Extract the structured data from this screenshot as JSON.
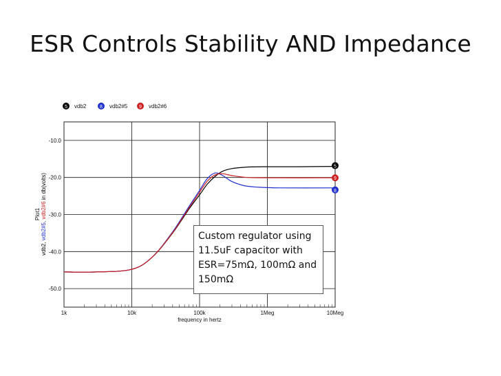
{
  "slide": {
    "title": "ESR Controls Stability AND Impedance"
  },
  "annotation": {
    "lines": [
      "Custom regulator using",
      "11.5uF capacitor with",
      "ESR=75mΩ, 100mΩ and",
      "150mΩ"
    ]
  },
  "chart_data": {
    "type": "line",
    "title": "",
    "plot_label": "Plot1",
    "xlabel": "frequency in hertz",
    "ylabel_parts": [
      {
        "text": "vdb2, ",
        "color": "#000000"
      },
      {
        "text": "vdb2#5",
        "color": "#1f2fd0"
      },
      {
        "text": ", ",
        "color": "#000000"
      },
      {
        "text": "vdb2#6",
        "color": "#d01f1f"
      },
      {
        "text": " in db(volts)",
        "color": "#000000"
      }
    ],
    "x_scale": "log",
    "xlim": [
      1000,
      10000000
    ],
    "ylim": [
      -55,
      -5
    ],
    "x_ticks": [
      {
        "value": 1000,
        "label": "1k"
      },
      {
        "value": 10000,
        "label": "10k"
      },
      {
        "value": 100000,
        "label": "100k"
      },
      {
        "value": 1000000,
        "label": "1Meg"
      },
      {
        "value": 10000000,
        "label": "10Meg"
      }
    ],
    "y_ticks": [
      {
        "value": -10,
        "label": "-10.0"
      },
      {
        "value": -20,
        "label": "-20.0"
      },
      {
        "value": -30,
        "label": "-30.0"
      },
      {
        "value": -40,
        "label": "-40.0"
      },
      {
        "value": -50,
        "label": "-50.0"
      }
    ],
    "grid": true,
    "legend": "top-left",
    "series": [
      {
        "name": "vdb2",
        "marker": "5",
        "color": "#000000",
        "points": [
          [
            1000,
            -45.5
          ],
          [
            3000,
            -45.5
          ],
          [
            10000,
            -44.8
          ],
          [
            20000,
            -41.5
          ],
          [
            40000,
            -35
          ],
          [
            70000,
            -28.5
          ],
          [
            100000,
            -24.7
          ],
          [
            130000,
            -21.8
          ],
          [
            170000,
            -19.7
          ],
          [
            220000,
            -18.3
          ],
          [
            300000,
            -17.6
          ],
          [
            500000,
            -17.2
          ],
          [
            1000000,
            -17.1
          ],
          [
            3000000,
            -17.1
          ],
          [
            10000000,
            -17.0
          ]
        ]
      },
      {
        "name": "vdb2#5",
        "marker": "8",
        "color": "#1f2fd0",
        "points": [
          [
            1000,
            -45.5
          ],
          [
            3000,
            -45.5
          ],
          [
            10000,
            -44.8
          ],
          [
            20000,
            -41.5
          ],
          [
            40000,
            -34.7
          ],
          [
            70000,
            -27.8
          ],
          [
            100000,
            -23.5
          ],
          [
            130000,
            -20.3
          ],
          [
            170000,
            -18.8
          ],
          [
            220000,
            -19.5
          ],
          [
            300000,
            -21.1
          ],
          [
            450000,
            -22.2
          ],
          [
            700000,
            -22.6
          ],
          [
            1500000,
            -22.8
          ],
          [
            10000000,
            -22.8
          ]
        ]
      },
      {
        "name": "vdb2#6",
        "marker": "9",
        "color": "#d01f1f",
        "points": [
          [
            1000,
            -45.5
          ],
          [
            3000,
            -45.5
          ],
          [
            10000,
            -44.8
          ],
          [
            20000,
            -41.5
          ],
          [
            40000,
            -34.9
          ],
          [
            70000,
            -28.2
          ],
          [
            100000,
            -24.0
          ],
          [
            130000,
            -21.0
          ],
          [
            170000,
            -19.3
          ],
          [
            220000,
            -19.0
          ],
          [
            300000,
            -19.5
          ],
          [
            500000,
            -20.0
          ],
          [
            1000000,
            -20.1
          ],
          [
            10000000,
            -20.1
          ]
        ]
      }
    ]
  }
}
